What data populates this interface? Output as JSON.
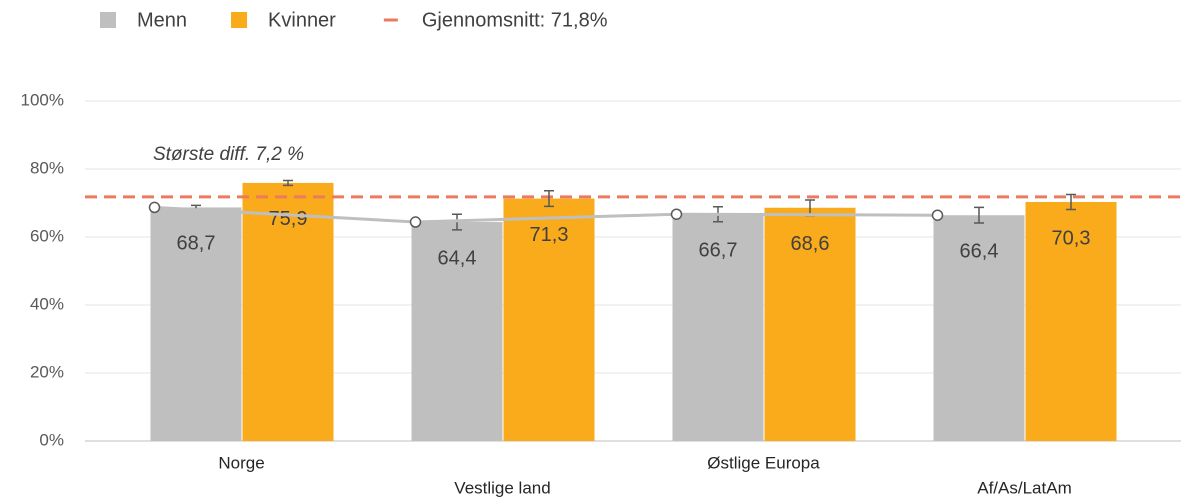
{
  "chart_data": {
    "type": "bar",
    "annotation": "Største diff. 7,2 %",
    "categories": [
      "Norge",
      "Vestlige land",
      "Østlige Europa",
      "Af/As/LatAm"
    ],
    "series": [
      {
        "name": "Menn",
        "color": "#bfbfbf",
        "values": [
          68.7,
          64.4,
          66.7,
          66.4
        ],
        "value_labels": [
          "68,7",
          "64,4",
          "66,7",
          "66,4"
        ],
        "errors": [
          0.6,
          2.3,
          2.2,
          2.3
        ]
      },
      {
        "name": "Kvinner",
        "color": "#f9ab1b",
        "values": [
          75.9,
          71.3,
          68.6,
          70.3
        ],
        "value_labels": [
          "75,9",
          "71,3",
          "68,6",
          "70,3"
        ],
        "errors": [
          0.7,
          2.3,
          2.3,
          2.2
        ]
      }
    ],
    "reference_line": {
      "name": "Gjennomsnitt: 71,8%",
      "value": 71.8,
      "color": "#ec7a5f"
    },
    "ylim": [
      0,
      100
    ],
    "yticks": [
      {
        "value": 0,
        "label": "0%"
      },
      {
        "value": 20,
        "label": "20%"
      },
      {
        "value": 40,
        "label": "40%"
      },
      {
        "value": 60,
        "label": "60%"
      },
      {
        "value": 80,
        "label": "80%"
      },
      {
        "value": 100,
        "label": "100%"
      }
    ],
    "grid": true
  }
}
